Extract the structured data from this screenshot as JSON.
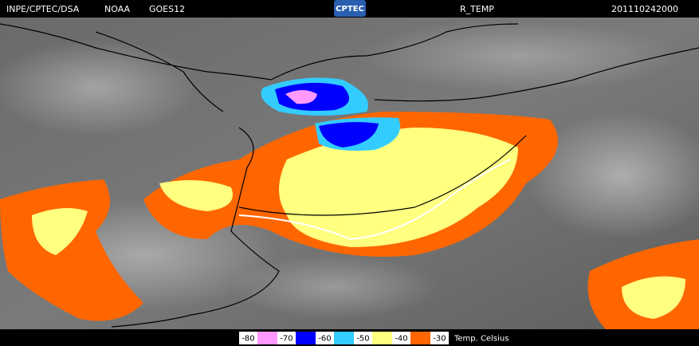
{
  "header": {
    "source": "INPE/CPTEC/DSA",
    "agency": "NOAA",
    "satellite": "GOES12",
    "logo": "CPTEC",
    "product": "R_TEMP",
    "timestamp": "201110242000"
  },
  "legend": {
    "items": [
      {
        "label": "-80",
        "color": "#ff99ff"
      },
      {
        "label": "-70",
        "color": "#0000ff"
      },
      {
        "label": "-60",
        "color": "#33ccff"
      },
      {
        "label": "-50",
        "color": "#ffff80"
      },
      {
        "label": "-40",
        "color": "#ff6600"
      },
      {
        "label": "-30",
        "color": null
      }
    ],
    "unit": "Temp. Celsius"
  }
}
